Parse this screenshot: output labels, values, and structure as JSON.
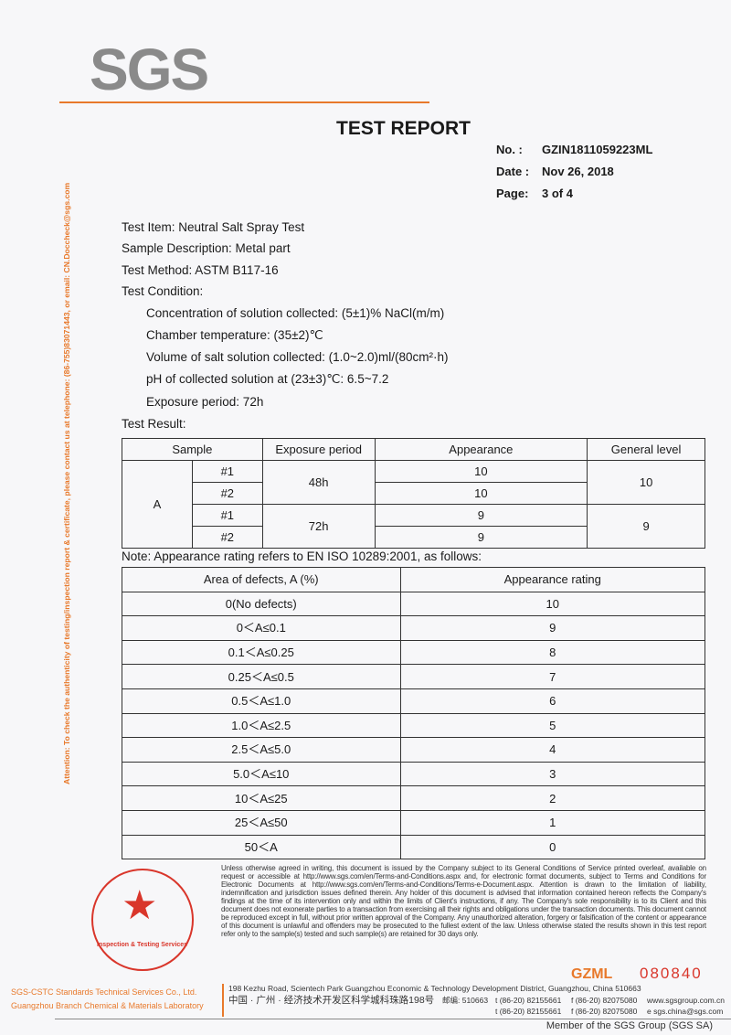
{
  "header": {
    "logo": "SGS",
    "title": "TEST REPORT",
    "meta": [
      {
        "label": "No.  :",
        "value": "GZIN1811059223ML"
      },
      {
        "label": "Date :",
        "value": "Nov 26, 2018"
      },
      {
        "label": "Page:",
        "value": "3 of 4"
      }
    ]
  },
  "side_notice": "Attention: To check the authenticity of testing/inspection report & certificate, please contact us at telephone: (86-755)83071443, or email: CN.Doccheck@sgs.com",
  "body": {
    "test_item": "Test Item: Neutral Salt Spray Test",
    "sample_description": "Sample Description: Metal part",
    "test_method": "Test Method: ASTM B117-16",
    "test_condition": "Test Condition:",
    "conditions": [
      "Concentration of solution collected: (5±1)% NaCl(m/m)",
      "Chamber temperature: (35±2)℃",
      "Volume of salt solution collected: (1.0~2.0)ml/(80cm²·h)",
      "pH of collected solution at (23±3)℃: 6.5~7.2",
      "Exposure period: 72h"
    ],
    "test_result": "Test Result:"
  },
  "results_table": {
    "headers": [
      "Sample",
      "Exposure period",
      "Appearance",
      "General level"
    ],
    "sample": "A",
    "groups": [
      {
        "period": "48h",
        "general": "10",
        "rows": [
          {
            "id": "#1",
            "appearance": "10"
          },
          {
            "id": "#2",
            "appearance": "10"
          }
        ]
      },
      {
        "period": "72h",
        "general": "9",
        "rows": [
          {
            "id": "#1",
            "appearance": "9"
          },
          {
            "id": "#2",
            "appearance": "9"
          }
        ]
      }
    ]
  },
  "note": "Note: Appearance rating refers to EN ISO 10289:2001, as follows:",
  "rating_table": {
    "headers": [
      "Area of defects, A (%)",
      "Appearance rating"
    ],
    "rows": [
      [
        "0(No defects)",
        "10"
      ],
      [
        "0＜A≤0.1",
        "9"
      ],
      [
        "0.1＜A≤0.25",
        "8"
      ],
      [
        "0.25＜A≤0.5",
        "7"
      ],
      [
        "0.5＜A≤1.0",
        "6"
      ],
      [
        "1.0＜A≤2.5",
        "5"
      ],
      [
        "2.5＜A≤5.0",
        "4"
      ],
      [
        "5.0＜A≤10",
        "3"
      ],
      [
        "10＜A≤25",
        "2"
      ],
      [
        "25＜A≤50",
        "1"
      ],
      [
        "50＜A",
        "0"
      ]
    ]
  },
  "footer": {
    "fine_print": "Unless otherwise agreed in writing, this document is issued by the Company subject to its General Conditions of Service printed overleaf, available on request or accessible at http://www.sgs.com/en/Terms-and-Conditions.aspx and, for electronic format documents, subject to Terms and Conditions for Electronic Documents at http://www.sgs.com/en/Terms-and-Conditions/Terms-e-Document.aspx. Attention is drawn to the limitation of liability, indemnification and jurisdiction issues defined therein. Any holder of this document is advised that information contained hereon reflects the Company's findings at the time of its intervention only and within the limits of Client's instructions, if any. The Company's sole responsibility is to its Client and this document does not exonerate parties to a transaction from exercising all their rights and obligations under the transaction documents. This document cannot be reproduced except in full, without prior written approval of the Company. Any unauthorized alteration, forgery or falsification of the content or appearance of this document is unlawful and offenders may be prosecuted to the fullest extent of the law. Unless otherwise stated the results shown in this test report refer only to the sample(s) tested and such sample(s) are retained for 30 days only.",
    "code": "GZML",
    "serial": "080840",
    "company_line1": "SGS-CSTC Standards Technical Services Co., Ltd.",
    "company_line2": "Guangzhou Branch  Chemical & Materials Laboratory",
    "address_en": "198 Kezhu Road, Scientech Park Guangzhou Economic & Technology Development District, Guangzhou, China  510663",
    "address_cn": "中国 · 广州 · 经济技术开发区科学城科珠路198号",
    "postcode_cn": "邮编: 510663",
    "tel": "t (86-20) 82155661",
    "fax": "f (86-20) 82075080",
    "web": "www.sgsgroup.com.cn",
    "email": "e  sgs.china@sgs.com",
    "member": "Member of the SGS Group (SGS SA)",
    "stamp_text": "Inspection & Testing Services"
  },
  "colors": {
    "accent": "#e8792b",
    "stamp": "#d9362b"
  }
}
